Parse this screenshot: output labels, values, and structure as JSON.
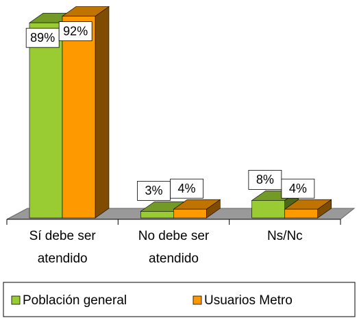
{
  "chart_data": {
    "type": "bar3d",
    "categories": [
      "Sí debe ser atendido",
      "No debe ser atendido",
      "Ns/Nc"
    ],
    "series": [
      {
        "name": "Población general",
        "color": "#99cc33",
        "values": [
          89,
          3,
          8
        ],
        "value_labels": [
          "89%",
          "3%",
          "8%"
        ]
      },
      {
        "name": "Usuarios Metro",
        "color": "#ff9900",
        "values": [
          92,
          4,
          4
        ],
        "value_labels": [
          "92%",
          "4%",
          "4%"
        ]
      }
    ],
    "legend": "bottom"
  }
}
